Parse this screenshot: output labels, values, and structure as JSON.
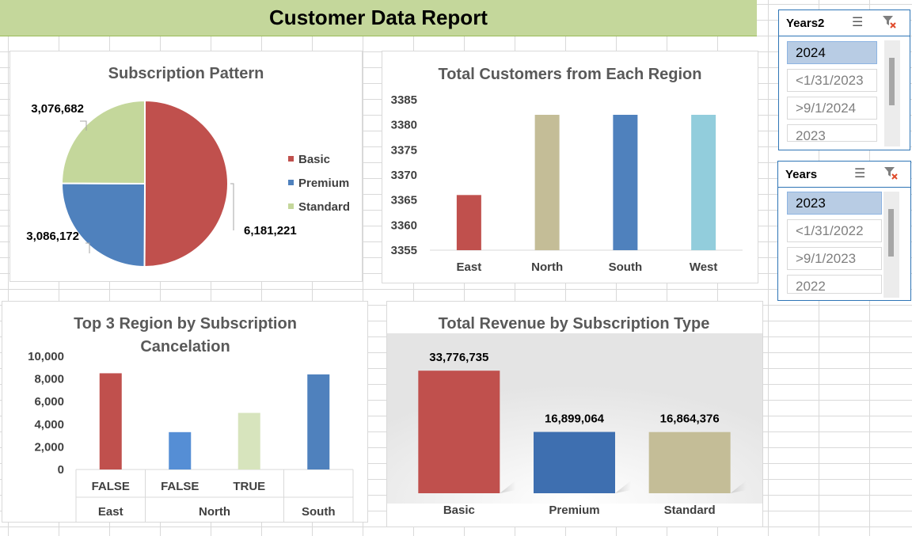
{
  "report_title": "Customer Data Report",
  "slicers": [
    {
      "title": "Years2",
      "items": [
        "2024",
        "<1/31/2023",
        ">9/1/2024",
        "2023"
      ],
      "selected": "2024",
      "multiselect_icon": "multi-select-icon",
      "clear_icon": "clear-filter-icon"
    },
    {
      "title": "Years",
      "items": [
        "2023",
        "<1/31/2022",
        ">9/1/2023",
        "2022"
      ],
      "selected": "2023",
      "multiselect_icon": "multi-select-icon",
      "clear_icon": "clear-filter-icon"
    }
  ],
  "chart_data": [
    {
      "id": "subscription",
      "type": "pie",
      "title": "Subscription Pattern",
      "categories": [
        "Basic",
        "Premium",
        "Standard"
      ],
      "values": [
        6181221,
        3086172,
        3076682
      ],
      "value_labels": [
        "6,181,221",
        "3,086,172",
        "3,076,682"
      ],
      "colors": [
        "#c0504d",
        "#4f81bd",
        "#c4d79b"
      ],
      "legend": "right"
    },
    {
      "id": "region_customers",
      "type": "bar",
      "title": "Total Customers from Each Region",
      "categories": [
        "East",
        "North",
        "South",
        "West"
      ],
      "values": [
        3366,
        3382,
        3382,
        3382
      ],
      "colors": [
        "#c0504d",
        "#c4bd97",
        "#4f81bd",
        "#92cddc"
      ],
      "ylim": [
        3355,
        3385
      ],
      "yticks": [
        "3355",
        "3360",
        "3365",
        "3370",
        "3375",
        "3380",
        "3385"
      ],
      "grid": false
    },
    {
      "id": "cancelation",
      "type": "bar",
      "title": "Top 3 Region by Subscription Cancelation",
      "title_lines": [
        "Top 3 Region by Subscription",
        "Cancelation"
      ],
      "categories": [
        {
          "label": "FALSE",
          "group": "East"
        },
        {
          "label": "FALSE",
          "group": "North"
        },
        {
          "label": "TRUE",
          "group": "North"
        },
        {
          "label": "",
          "group": "South"
        }
      ],
      "groups": [
        "East",
        "North",
        "South"
      ],
      "values": [
        8500,
        3300,
        5000,
        8400
      ],
      "colors": [
        "#c0504d",
        "#558ed5",
        "#d7e4bd",
        "#4f81bd"
      ],
      "ylim": [
        0,
        10000
      ],
      "yticks": [
        "0",
        "2,000",
        "4,000",
        "6,000",
        "8,000",
        "10,000"
      ]
    },
    {
      "id": "revenue",
      "type": "bar",
      "title": "Total Revenue by Subscription Type",
      "categories": [
        "Basic",
        "Premium",
        "Standard"
      ],
      "values": [
        33776735,
        16899064,
        16864376
      ],
      "value_labels": [
        "33,776,735",
        "16,899,064",
        "16,864,376"
      ],
      "colors": [
        "#c0504d",
        "#3e6fb0",
        "#c4bd97"
      ]
    }
  ]
}
